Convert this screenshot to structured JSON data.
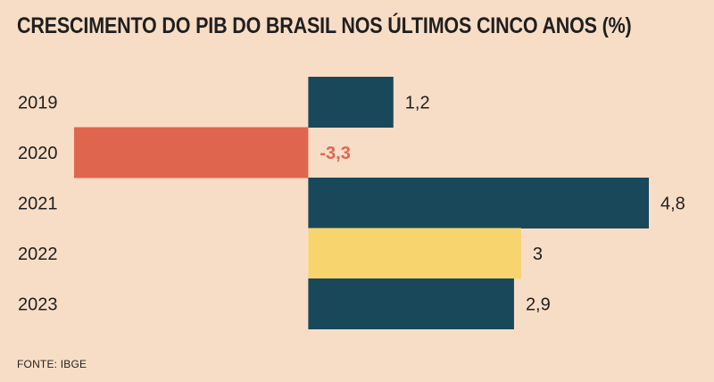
{
  "chart_data": {
    "type": "bar",
    "orientation": "horizontal",
    "title": "CRESCIMENTO DO PIB DO BRASIL NOS ÚLTIMOS CINCO ANOS (%)",
    "categories": [
      "2019",
      "2020",
      "2021",
      "2022",
      "2023"
    ],
    "values": [
      1.2,
      -3.3,
      4.8,
      3,
      2.9
    ],
    "value_labels": [
      "1,2",
      "-3,3",
      "4,8",
      "3",
      "2,9"
    ],
    "bar_colors": [
      "#19485a",
      "#e0654f",
      "#19485a",
      "#f8d46f",
      "#19485a"
    ],
    "label_colors": [
      "#1f1f1f",
      "#e0654f",
      "#1f1f1f",
      "#1f1f1f",
      "#1f1f1f"
    ],
    "xlim": [
      -3.3,
      4.8
    ],
    "grid": false,
    "legend": "none"
  },
  "source": "FONTE: IBGE"
}
